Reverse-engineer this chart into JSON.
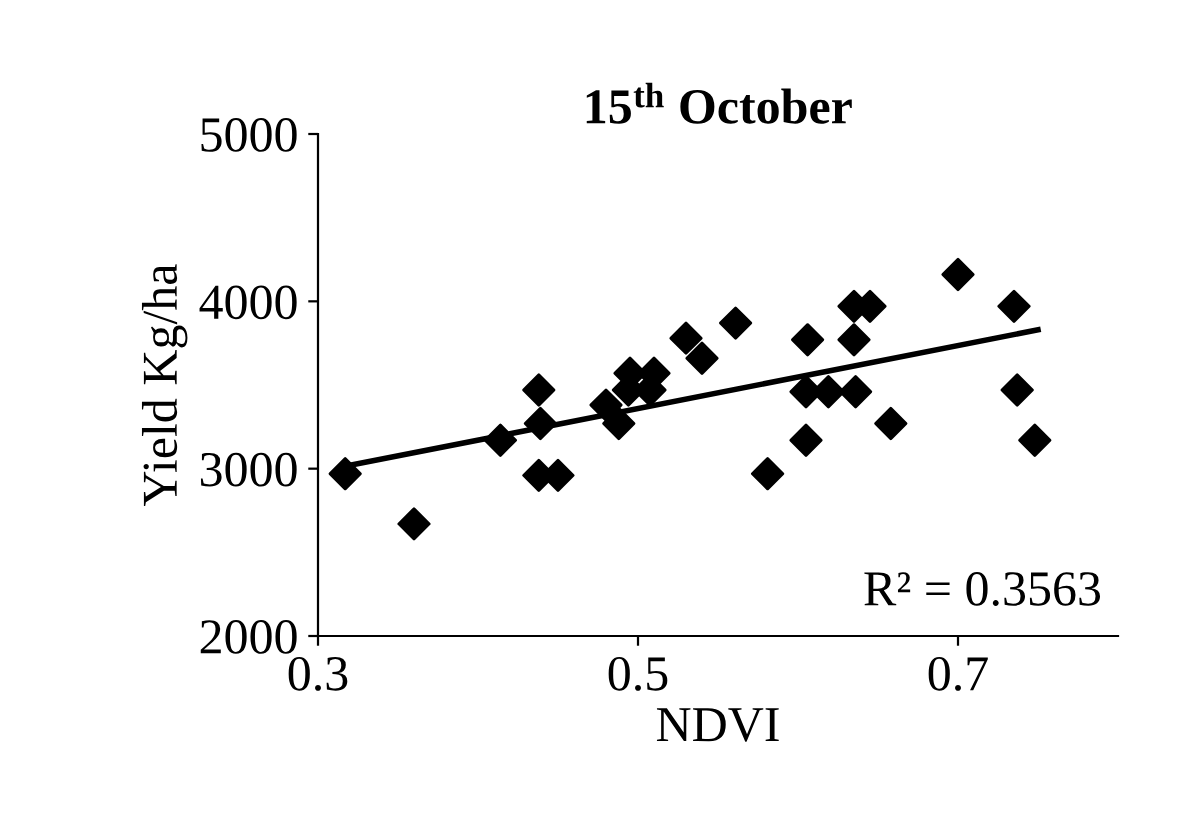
{
  "chart_data": {
    "type": "scatter",
    "title": "15$^{th}$ October",
    "xlabel": "NDVI",
    "ylabel": "Yield Kg/ha",
    "xlim": [
      0.3,
      0.8
    ],
    "xticks": [
      0.3,
      0.5,
      0.7
    ],
    "ylim": [
      2000,
      5000
    ],
    "yticks": [
      2000,
      3000,
      4000,
      5000
    ],
    "grid": false,
    "legend": false,
    "annotations": [
      "R² = 0.3563"
    ],
    "series": [
      {
        "marker": "diamond",
        "color": "#000000",
        "x": [
          0.317,
          0.36,
          0.414,
          0.438,
          0.439,
          0.438,
          0.45,
          0.48,
          0.488,
          0.495,
          0.494,
          0.51,
          0.5075,
          0.53,
          0.54,
          0.561,
          0.581,
          0.605,
          0.605,
          0.606,
          0.619,
          0.635,
          0.645,
          0.635,
          0.636,
          0.658,
          0.7,
          0.735,
          0.737,
          0.748
        ],
        "values": [
          2970,
          2670,
          3170,
          3470,
          3270,
          2960,
          2960,
          3380,
          3270,
          3570,
          3470,
          3570,
          3470,
          3780,
          3660,
          3870,
          2970,
          3170,
          3460,
          3770,
          3460,
          3970,
          3970,
          3770,
          3460,
          3270,
          4160,
          3970,
          3470,
          3170
        ]
      },
      {
        "type": "line",
        "marker": "none",
        "color": "#000000",
        "x": [
          0.32,
          0.75
        ],
        "values": [
          3020,
          3830
        ]
      }
    ]
  }
}
